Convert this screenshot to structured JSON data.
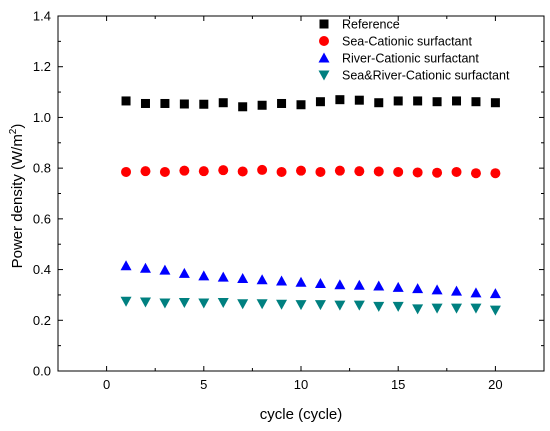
{
  "chart_data": {
    "type": "scatter",
    "title": "",
    "xlabel": "cycle (cycle)",
    "ylabel_main": "Power density (W/m",
    "ylabel_sup": "2",
    "ylabel_close": ")",
    "xlim": [
      -2.5,
      22.5
    ],
    "ylim": [
      0.0,
      1.4
    ],
    "grid": false,
    "legend_position": "top-right",
    "x_ticks": [
      0,
      5,
      10,
      15,
      20
    ],
    "y_ticks": [
      0.0,
      0.2,
      0.4,
      0.6,
      0.8,
      1.0,
      1.2,
      1.4
    ],
    "x_tick_labels": [
      "0",
      "5",
      "10",
      "15",
      "20"
    ],
    "y_tick_labels": [
      "0.0",
      "0.2",
      "0.4",
      "0.6",
      "0.8",
      "1.0",
      "1.2",
      "1.4"
    ],
    "x": [
      1,
      2,
      3,
      4,
      5,
      6,
      7,
      8,
      9,
      10,
      11,
      12,
      13,
      14,
      15,
      16,
      17,
      18,
      19,
      20
    ],
    "series": [
      {
        "name": "Reference",
        "marker": "square",
        "color": "#000000",
        "values": [
          1.065,
          1.055,
          1.055,
          1.053,
          1.052,
          1.058,
          1.042,
          1.048,
          1.055,
          1.05,
          1.062,
          1.07,
          1.068,
          1.058,
          1.065,
          1.065,
          1.062,
          1.065,
          1.062,
          1.058
        ]
      },
      {
        "name": "Sea-Cationic surfactant",
        "marker": "circle",
        "color": "#ff0000",
        "values": [
          0.785,
          0.788,
          0.785,
          0.79,
          0.788,
          0.792,
          0.787,
          0.793,
          0.785,
          0.79,
          0.785,
          0.79,
          0.788,
          0.787,
          0.785,
          0.783,
          0.782,
          0.785,
          0.78,
          0.78
        ]
      },
      {
        "name": "River-Cationic surfactant",
        "marker": "triangle-up",
        "color": "#0000ff",
        "values": [
          0.415,
          0.405,
          0.398,
          0.385,
          0.375,
          0.37,
          0.365,
          0.36,
          0.355,
          0.35,
          0.345,
          0.34,
          0.338,
          0.335,
          0.33,
          0.325,
          0.32,
          0.315,
          0.308,
          0.305
        ]
      },
      {
        "name": "Sea&River-Cationic surfactant",
        "marker": "triangle-down",
        "color": "#008080",
        "values": [
          0.275,
          0.272,
          0.268,
          0.27,
          0.268,
          0.27,
          0.265,
          0.265,
          0.263,
          0.262,
          0.262,
          0.26,
          0.26,
          0.255,
          0.255,
          0.245,
          0.248,
          0.248,
          0.248,
          0.24
        ]
      }
    ]
  }
}
